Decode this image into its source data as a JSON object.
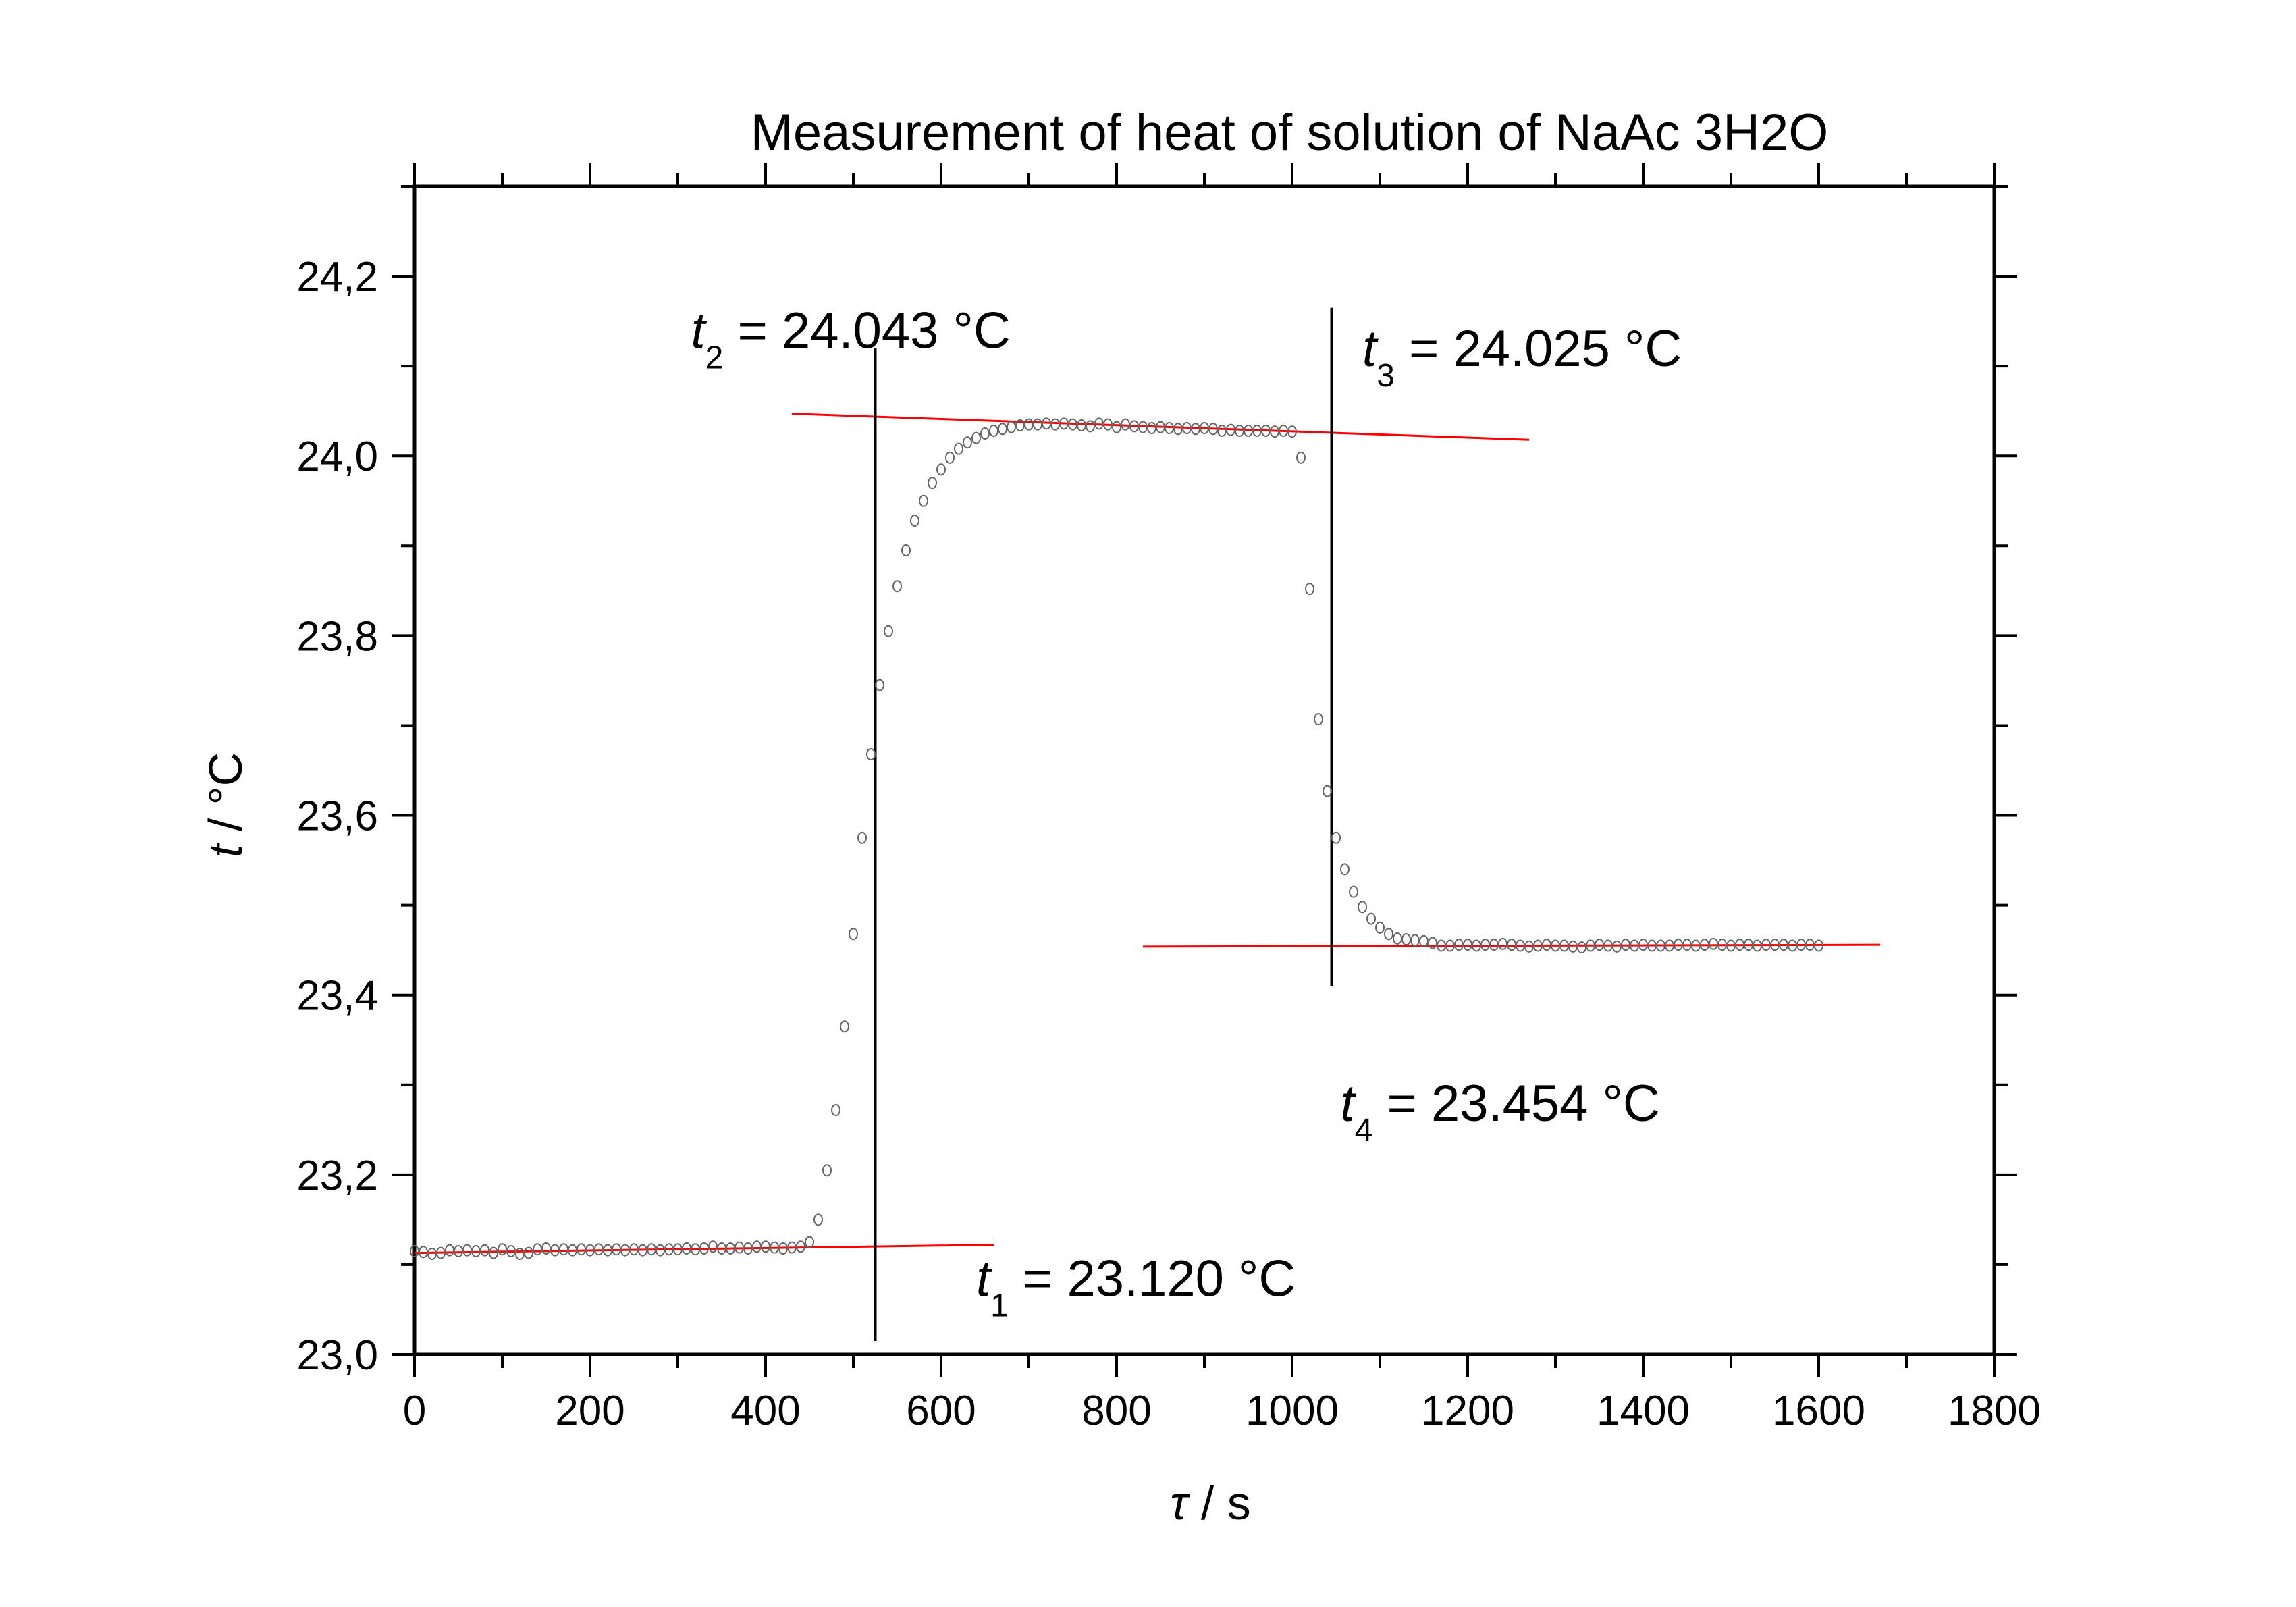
{
  "chart_data": {
    "type": "scatter",
    "title": "Measurement of heat of solution of NaAc 3H2O",
    "xlabel": {
      "symbol": "τ",
      "unit": " / s"
    },
    "ylabel": {
      "symbol": "t",
      "unit": " / °C"
    },
    "xlim": [
      0,
      1800
    ],
    "ylim": [
      23.0,
      24.3
    ],
    "xticks": [
      "0",
      "200",
      "400",
      "600",
      "800",
      "1000",
      "1200",
      "1400",
      "1600",
      "1800"
    ],
    "xtick_values": [
      0,
      200,
      400,
      600,
      800,
      1000,
      1200,
      1400,
      1600,
      1800
    ],
    "yticks": [
      "23,0",
      "23,2",
      "23,4",
      "23,6",
      "23,8",
      "24,0",
      "24,2"
    ],
    "ytick_values": [
      23.0,
      23.2,
      23.4,
      23.6,
      23.8,
      24.0,
      24.2
    ],
    "grid": false,
    "colors": {
      "points": "#666666",
      "fit_lines": "#ff0000",
      "vertical_lines": "#000000",
      "axes": "#000000"
    },
    "points": [
      [
        0,
        23.115
      ],
      [
        10,
        23.114
      ],
      [
        20,
        23.112
      ],
      [
        30,
        23.113
      ],
      [
        40,
        23.116
      ],
      [
        50,
        23.115
      ],
      [
        60,
        23.116
      ],
      [
        70,
        23.115
      ],
      [
        80,
        23.116
      ],
      [
        90,
        23.113
      ],
      [
        100,
        23.117
      ],
      [
        110,
        23.115
      ],
      [
        120,
        23.112
      ],
      [
        130,
        23.113
      ],
      [
        140,
        23.117
      ],
      [
        150,
        23.118
      ],
      [
        160,
        23.116
      ],
      [
        170,
        23.117
      ],
      [
        180,
        23.116
      ],
      [
        190,
        23.117
      ],
      [
        200,
        23.116
      ],
      [
        210,
        23.117
      ],
      [
        220,
        23.116
      ],
      [
        230,
        23.117
      ],
      [
        240,
        23.116
      ],
      [
        250,
        23.117
      ],
      [
        260,
        23.116
      ],
      [
        270,
        23.117
      ],
      [
        280,
        23.116
      ],
      [
        290,
        23.117
      ],
      [
        300,
        23.117
      ],
      [
        310,
        23.118
      ],
      [
        320,
        23.117
      ],
      [
        330,
        23.118
      ],
      [
        340,
        23.12
      ],
      [
        350,
        23.118
      ],
      [
        360,
        23.118
      ],
      [
        370,
        23.119
      ],
      [
        380,
        23.118
      ],
      [
        390,
        23.12
      ],
      [
        400,
        23.12
      ],
      [
        410,
        23.119
      ],
      [
        420,
        23.118
      ],
      [
        430,
        23.119
      ],
      [
        440,
        23.12
      ],
      [
        450,
        23.125
      ],
      [
        460,
        23.15
      ],
      [
        470,
        23.205
      ],
      [
        480,
        23.272
      ],
      [
        490,
        23.365
      ],
      [
        500,
        23.468
      ],
      [
        510,
        23.575
      ],
      [
        520,
        23.668
      ],
      [
        530,
        23.745
      ],
      [
        540,
        23.805
      ],
      [
        550,
        23.855
      ],
      [
        560,
        23.895
      ],
      [
        570,
        23.928
      ],
      [
        580,
        23.95
      ],
      [
        590,
        23.97
      ],
      [
        600,
        23.985
      ],
      [
        610,
        23.998
      ],
      [
        620,
        24.008
      ],
      [
        630,
        24.015
      ],
      [
        640,
        24.02
      ],
      [
        650,
        24.025
      ],
      [
        660,
        24.028
      ],
      [
        670,
        24.03
      ],
      [
        680,
        24.032
      ],
      [
        690,
        24.034
      ],
      [
        700,
        24.035
      ],
      [
        710,
        24.035
      ],
      [
        720,
        24.036
      ],
      [
        730,
        24.035
      ],
      [
        740,
        24.036
      ],
      [
        750,
        24.035
      ],
      [
        760,
        24.034
      ],
      [
        770,
        24.033
      ],
      [
        780,
        24.036
      ],
      [
        790,
        24.035
      ],
      [
        800,
        24.032
      ],
      [
        810,
        24.035
      ],
      [
        820,
        24.033
      ],
      [
        830,
        24.032
      ],
      [
        840,
        24.031
      ],
      [
        850,
        24.032
      ],
      [
        860,
        24.031
      ],
      [
        870,
        24.03
      ],
      [
        880,
        24.031
      ],
      [
        890,
        24.03
      ],
      [
        900,
        24.031
      ],
      [
        910,
        24.03
      ],
      [
        920,
        24.028
      ],
      [
        930,
        24.029
      ],
      [
        940,
        24.028
      ],
      [
        950,
        24.028
      ],
      [
        960,
        24.028
      ],
      [
        970,
        24.028
      ],
      [
        980,
        24.027
      ],
      [
        990,
        24.028
      ],
      [
        1000,
        24.027
      ],
      [
        1010,
        23.998
      ],
      [
        1020,
        23.852
      ],
      [
        1030,
        23.707
      ],
      [
        1040,
        23.627
      ],
      [
        1050,
        23.575
      ],
      [
        1060,
        23.54
      ],
      [
        1070,
        23.515
      ],
      [
        1080,
        23.498
      ],
      [
        1090,
        23.485
      ],
      [
        1100,
        23.475
      ],
      [
        1110,
        23.468
      ],
      [
        1120,
        23.463
      ],
      [
        1130,
        23.462
      ],
      [
        1140,
        23.461
      ],
      [
        1150,
        23.46
      ],
      [
        1160,
        23.458
      ],
      [
        1170,
        23.455
      ],
      [
        1180,
        23.455
      ],
      [
        1190,
        23.456
      ],
      [
        1200,
        23.456
      ],
      [
        1210,
        23.455
      ],
      [
        1220,
        23.456
      ],
      [
        1230,
        23.456
      ],
      [
        1240,
        23.457
      ],
      [
        1250,
        23.456
      ],
      [
        1260,
        23.455
      ],
      [
        1270,
        23.454
      ],
      [
        1280,
        23.455
      ],
      [
        1290,
        23.456
      ],
      [
        1300,
        23.455
      ],
      [
        1310,
        23.455
      ],
      [
        1320,
        23.454
      ],
      [
        1330,
        23.453
      ],
      [
        1340,
        23.455
      ],
      [
        1350,
        23.456
      ],
      [
        1360,
        23.455
      ],
      [
        1370,
        23.454
      ],
      [
        1380,
        23.456
      ],
      [
        1390,
        23.455
      ],
      [
        1400,
        23.456
      ],
      [
        1410,
        23.455
      ],
      [
        1420,
        23.455
      ],
      [
        1430,
        23.455
      ],
      [
        1440,
        23.456
      ],
      [
        1450,
        23.456
      ],
      [
        1460,
        23.455
      ],
      [
        1470,
        23.456
      ],
      [
        1480,
        23.457
      ],
      [
        1490,
        23.456
      ],
      [
        1500,
        23.455
      ],
      [
        1510,
        23.456
      ],
      [
        1520,
        23.456
      ],
      [
        1530,
        23.455
      ],
      [
        1540,
        23.456
      ],
      [
        1550,
        23.456
      ],
      [
        1560,
        23.456
      ],
      [
        1570,
        23.455
      ],
      [
        1580,
        23.456
      ],
      [
        1590,
        23.456
      ],
      [
        1600,
        23.455
      ]
    ],
    "fit_lines": [
      {
        "x": [
          0,
          660
        ],
        "y": [
          23.113,
          23.122
        ]
      },
      {
        "x": [
          430,
          1270
        ],
        "y": [
          24.047,
          24.018
        ]
      },
      {
        "x": [
          830,
          1670
        ],
        "y": [
          23.454,
          23.456
        ]
      }
    ],
    "vertical_lines": [
      {
        "x": 525,
        "y": [
          23.015,
          24.12
        ]
      },
      {
        "x": 1045,
        "y": [
          23.41,
          24.165
        ]
      }
    ],
    "annotations": [
      {
        "name": "t2",
        "symbol": "t",
        "sub": "2",
        "text": " = 24.043 °C",
        "x": 315,
        "y": 24.12
      },
      {
        "name": "t3",
        "symbol": "t",
        "sub": "3",
        "text": " = 24.025 °C",
        "x": 1080,
        "y": 24.1
      },
      {
        "name": "t4",
        "symbol": "t",
        "sub": "4",
        "text": " = 23.454 °C",
        "x": 1055,
        "y": 23.26
      },
      {
        "name": "t1",
        "symbol": "t",
        "sub": "1",
        "text": " = 23.120 °C",
        "x": 640,
        "y": 23.065
      }
    ]
  }
}
